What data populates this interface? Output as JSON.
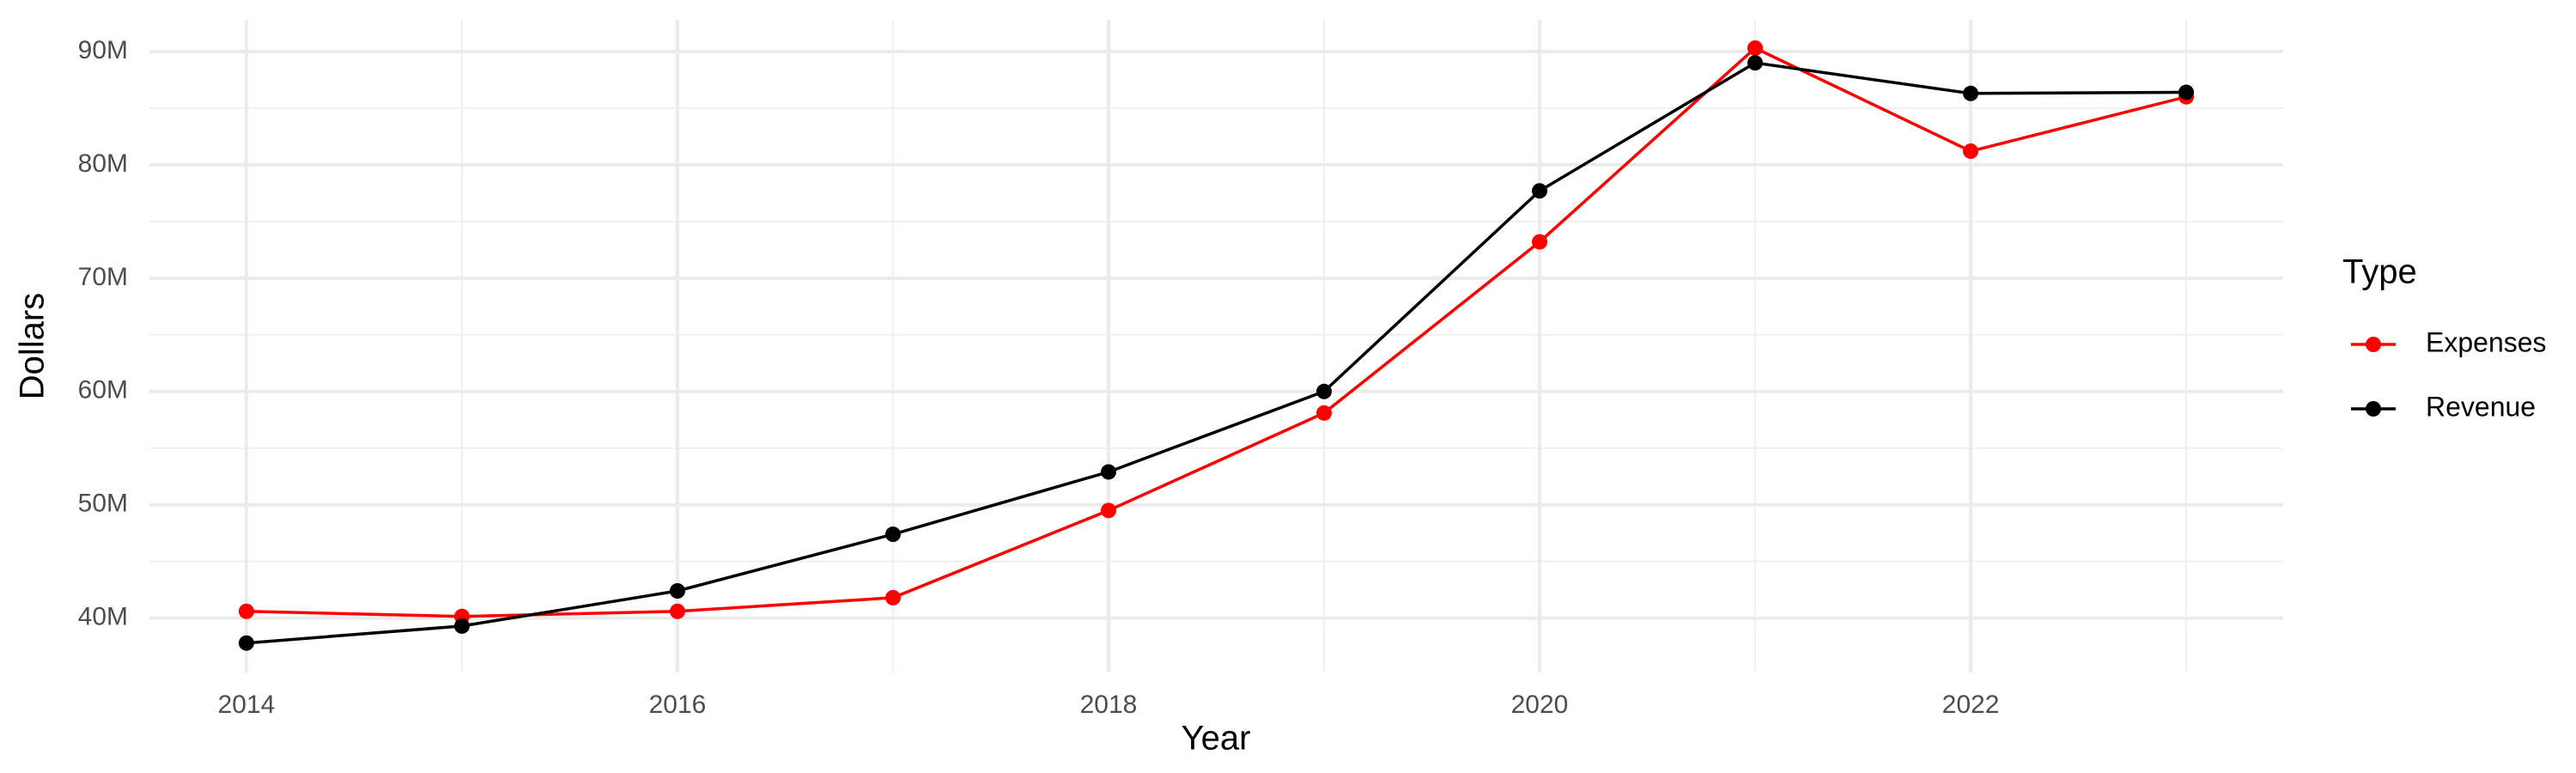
{
  "chart_data": {
    "type": "line",
    "x_label": "Year",
    "y_label": "Dollars",
    "x": [
      2014,
      2015,
      2016,
      2017,
      2018,
      2019,
      2020,
      2021,
      2022,
      2023
    ],
    "series": [
      {
        "name": "Expenses",
        "color": "#ff0000",
        "values": [
          40600000,
          40150000,
          40600000,
          41800000,
          49500000,
          58100000,
          73200000,
          90300000,
          81200000,
          86000000
        ]
      },
      {
        "name": "Revenue",
        "color": "#000000",
        "values": [
          37800000,
          39300000,
          42400000,
          47400000,
          52900000,
          60000000,
          77700000,
          89000000,
          86300000,
          86400000
        ]
      }
    ],
    "xlim": [
      2013.55,
      2023.45
    ],
    "xticks": [
      2014,
      2016,
      2018,
      2020,
      2022
    ],
    "ylim": [
      35200000,
      92800000
    ],
    "yticks": [
      {
        "value": 40000000,
        "label": "40M"
      },
      {
        "value": 50000000,
        "label": "50M"
      },
      {
        "value": 60000000,
        "label": "60M"
      },
      {
        "value": 70000000,
        "label": "70M"
      },
      {
        "value": 80000000,
        "label": "80M"
      },
      {
        "value": 90000000,
        "label": "90M"
      }
    ],
    "grid": true,
    "legend_title": "Type",
    "legend_position": "right"
  }
}
